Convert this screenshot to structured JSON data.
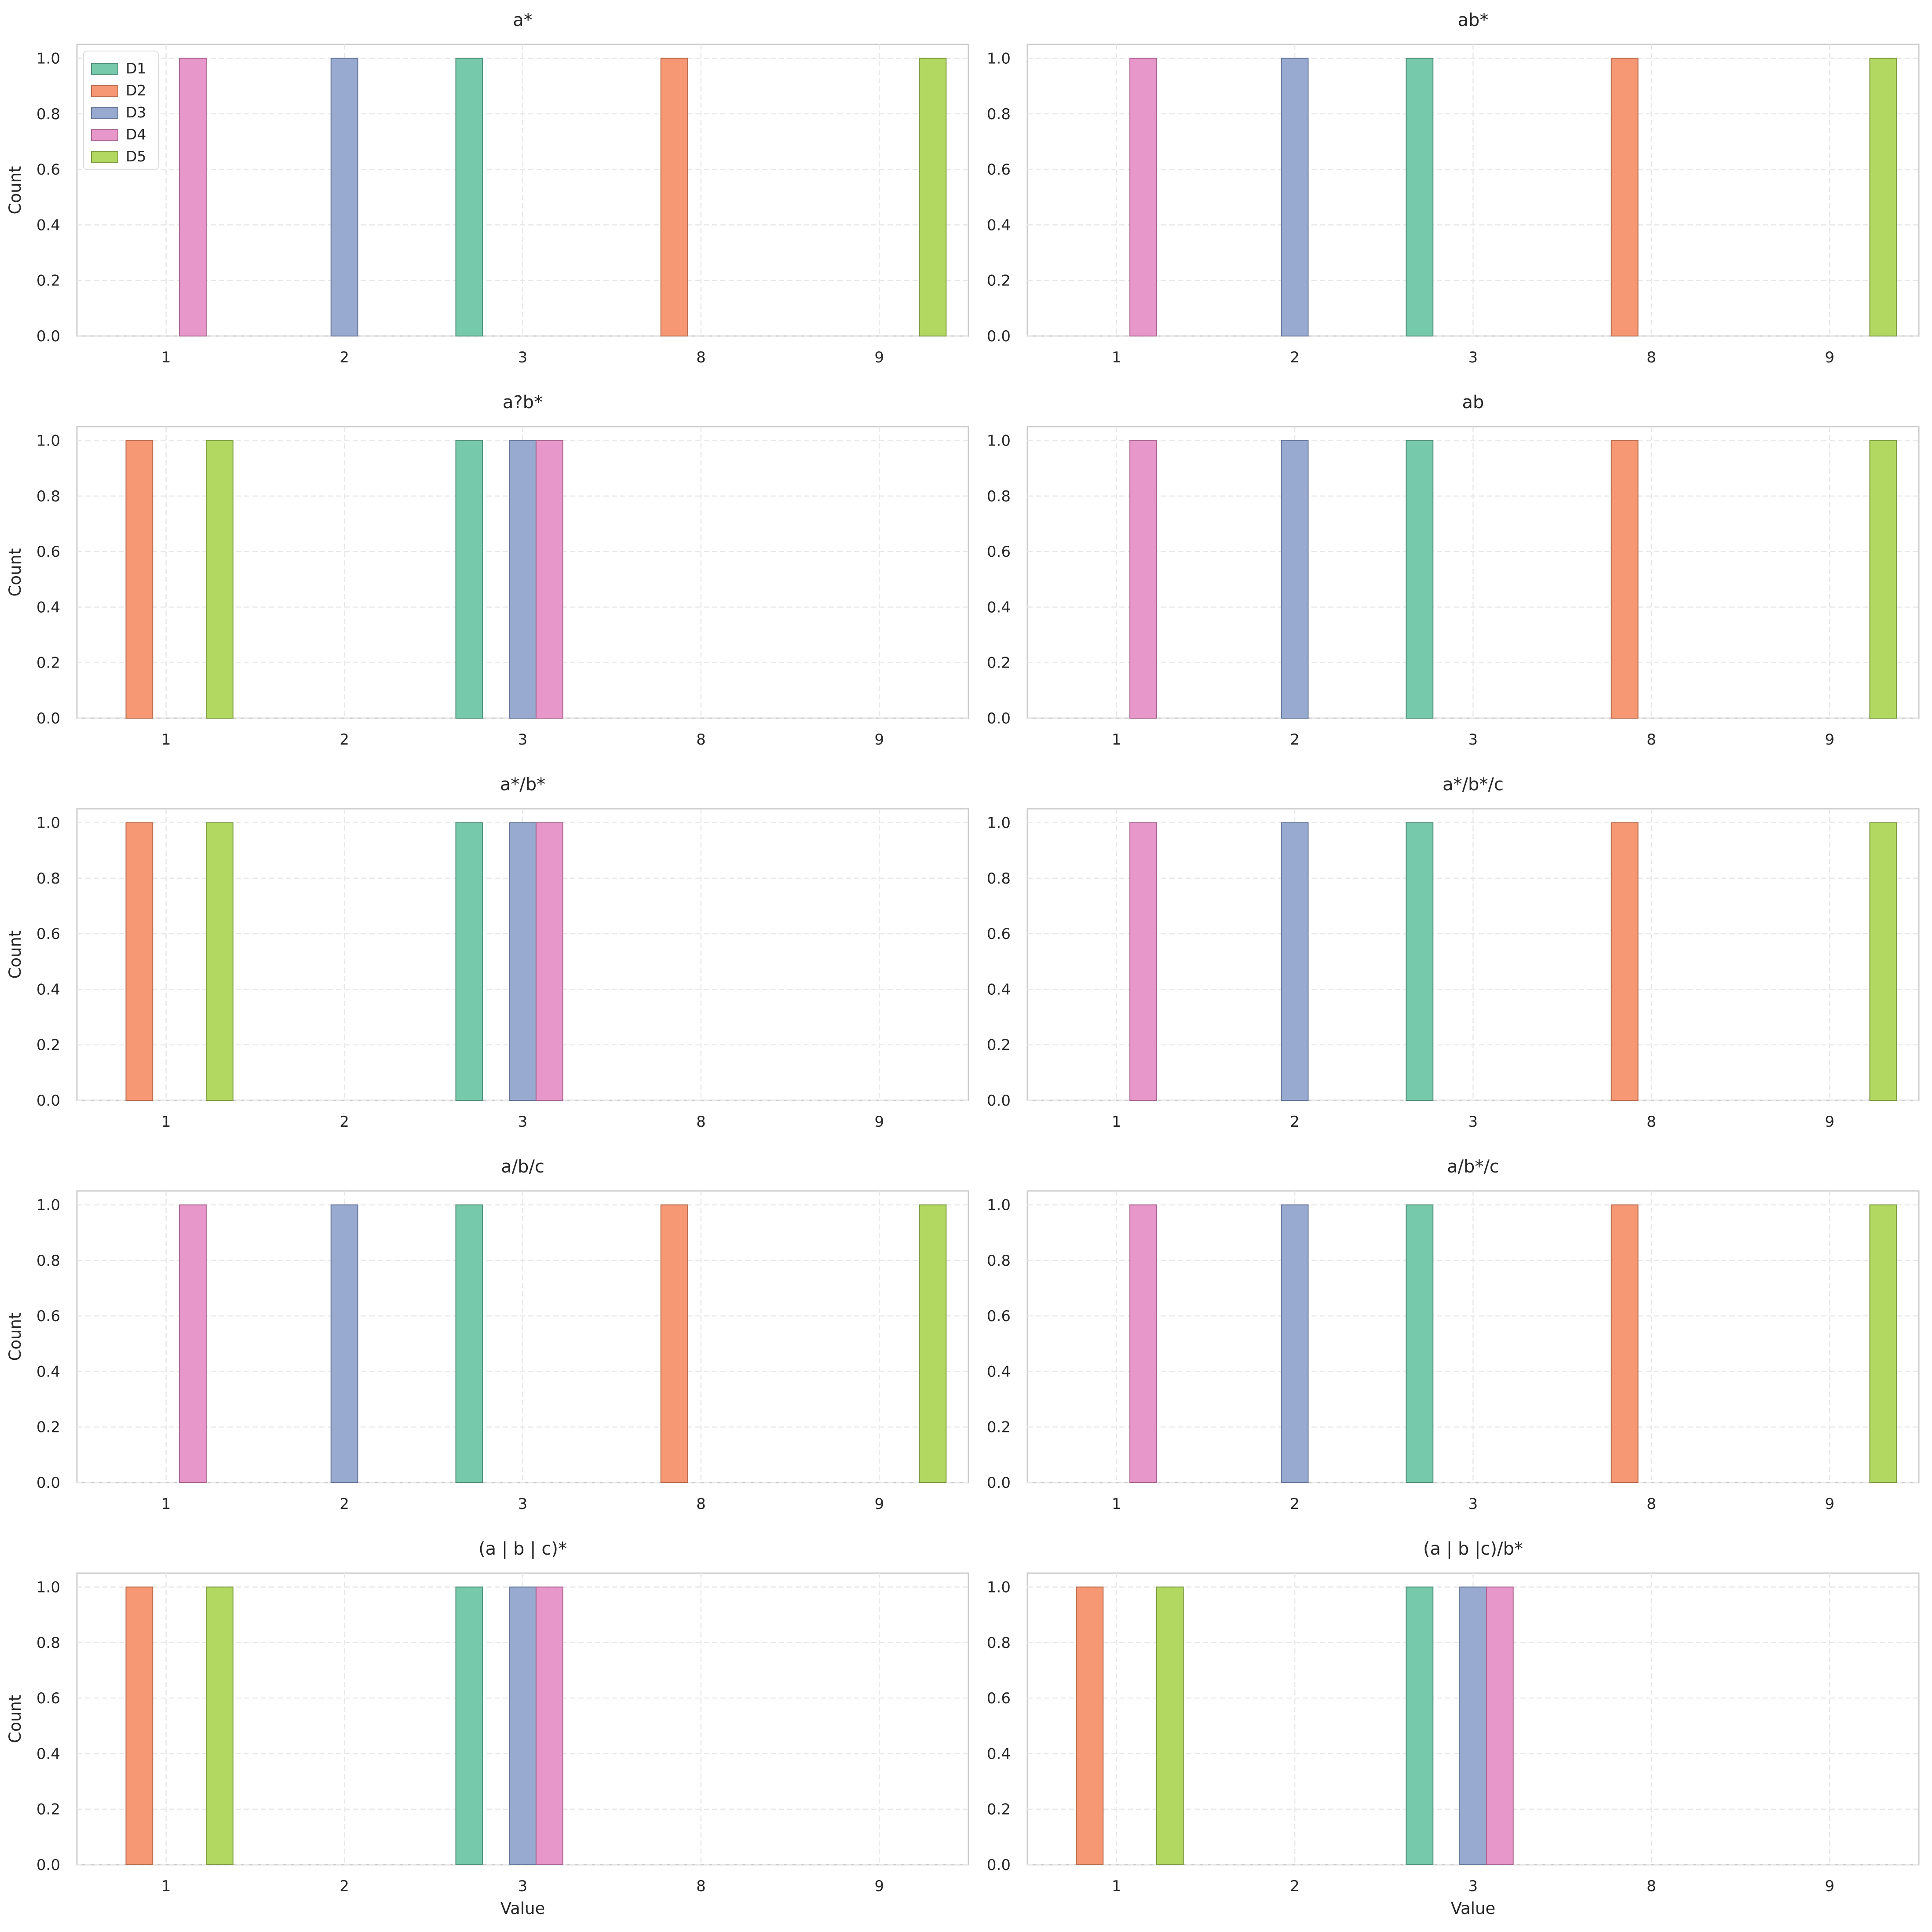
{
  "colors": {
    "D1": "#77C9AC",
    "D2": "#F69874",
    "D3": "#98AACF",
    "D4": "#E797C9",
    "D5": "#B2D862"
  },
  "edge_colors": {
    "D1": "#4F8F78",
    "D2": "#B86B4D",
    "D3": "#66759A",
    "D4": "#A9648F",
    "D5": "#7C9A3F"
  },
  "chart_data": [
    {
      "type": "bar",
      "title": "a*",
      "xlabel": "",
      "ylabel": "Count",
      "categories": [
        "1",
        "2",
        "3",
        "8",
        "9"
      ],
      "ylim": [
        0,
        1.05
      ],
      "yticks": [
        "0.0",
        "0.2",
        "0.4",
        "0.6",
        "0.8",
        "1.0"
      ],
      "grid": true,
      "legend": "top-left",
      "series": [
        {
          "name": "D1",
          "values": [
            0,
            0,
            1,
            0,
            0
          ]
        },
        {
          "name": "D2",
          "values": [
            0,
            0,
            0,
            1,
            0
          ]
        },
        {
          "name": "D3",
          "values": [
            0,
            1,
            0,
            0,
            0
          ]
        },
        {
          "name": "D4",
          "values": [
            1,
            0,
            0,
            0,
            0
          ]
        },
        {
          "name": "D5",
          "values": [
            0,
            0,
            0,
            0,
            1
          ]
        }
      ]
    },
    {
      "type": "bar",
      "title": "ab*",
      "xlabel": "",
      "ylabel": "",
      "categories": [
        "1",
        "2",
        "3",
        "8",
        "9"
      ],
      "ylim": [
        0,
        1.05
      ],
      "yticks": [
        "0.0",
        "0.2",
        "0.4",
        "0.6",
        "0.8",
        "1.0"
      ],
      "grid": true,
      "series": [
        {
          "name": "D1",
          "values": [
            0,
            0,
            1,
            0,
            0
          ]
        },
        {
          "name": "D2",
          "values": [
            0,
            0,
            0,
            1,
            0
          ]
        },
        {
          "name": "D3",
          "values": [
            0,
            1,
            0,
            0,
            0
          ]
        },
        {
          "name": "D4",
          "values": [
            1,
            0,
            0,
            0,
            0
          ]
        },
        {
          "name": "D5",
          "values": [
            0,
            0,
            0,
            0,
            1
          ]
        }
      ]
    },
    {
      "type": "bar",
      "title": "a?b*",
      "xlabel": "",
      "ylabel": "Count",
      "categories": [
        "1",
        "2",
        "3",
        "8",
        "9"
      ],
      "ylim": [
        0,
        1.05
      ],
      "yticks": [
        "0.0",
        "0.2",
        "0.4",
        "0.6",
        "0.8",
        "1.0"
      ],
      "grid": true,
      "series": [
        {
          "name": "D1",
          "values": [
            0,
            0,
            1,
            0,
            0
          ]
        },
        {
          "name": "D2",
          "values": [
            1,
            0,
            0,
            0,
            0
          ]
        },
        {
          "name": "D3",
          "values": [
            0,
            0,
            1,
            0,
            0
          ]
        },
        {
          "name": "D4",
          "values": [
            0,
            0,
            1,
            0,
            0
          ]
        },
        {
          "name": "D5",
          "values": [
            1,
            0,
            0,
            0,
            0
          ]
        }
      ]
    },
    {
      "type": "bar",
      "title": "ab",
      "xlabel": "",
      "ylabel": "",
      "categories": [
        "1",
        "2",
        "3",
        "8",
        "9"
      ],
      "ylim": [
        0,
        1.05
      ],
      "yticks": [
        "0.0",
        "0.2",
        "0.4",
        "0.6",
        "0.8",
        "1.0"
      ],
      "grid": true,
      "series": [
        {
          "name": "D1",
          "values": [
            0,
            0,
            1,
            0,
            0
          ]
        },
        {
          "name": "D2",
          "values": [
            0,
            0,
            0,
            1,
            0
          ]
        },
        {
          "name": "D3",
          "values": [
            0,
            1,
            0,
            0,
            0
          ]
        },
        {
          "name": "D4",
          "values": [
            1,
            0,
            0,
            0,
            0
          ]
        },
        {
          "name": "D5",
          "values": [
            0,
            0,
            0,
            0,
            1
          ]
        }
      ]
    },
    {
      "type": "bar",
      "title": "a*/b*",
      "xlabel": "",
      "ylabel": "Count",
      "categories": [
        "1",
        "2",
        "3",
        "8",
        "9"
      ],
      "ylim": [
        0,
        1.05
      ],
      "yticks": [
        "0.0",
        "0.2",
        "0.4",
        "0.6",
        "0.8",
        "1.0"
      ],
      "grid": true,
      "series": [
        {
          "name": "D1",
          "values": [
            0,
            0,
            1,
            0,
            0
          ]
        },
        {
          "name": "D2",
          "values": [
            1,
            0,
            0,
            0,
            0
          ]
        },
        {
          "name": "D3",
          "values": [
            0,
            0,
            1,
            0,
            0
          ]
        },
        {
          "name": "D4",
          "values": [
            0,
            0,
            1,
            0,
            0
          ]
        },
        {
          "name": "D5",
          "values": [
            1,
            0,
            0,
            0,
            0
          ]
        }
      ]
    },
    {
      "type": "bar",
      "title": "a*/b*/c",
      "xlabel": "",
      "ylabel": "",
      "categories": [
        "1",
        "2",
        "3",
        "8",
        "9"
      ],
      "ylim": [
        0,
        1.05
      ],
      "yticks": [
        "0.0",
        "0.2",
        "0.4",
        "0.6",
        "0.8",
        "1.0"
      ],
      "grid": true,
      "series": [
        {
          "name": "D1",
          "values": [
            0,
            0,
            1,
            0,
            0
          ]
        },
        {
          "name": "D2",
          "values": [
            0,
            0,
            0,
            1,
            0
          ]
        },
        {
          "name": "D3",
          "values": [
            0,
            1,
            0,
            0,
            0
          ]
        },
        {
          "name": "D4",
          "values": [
            1,
            0,
            0,
            0,
            0
          ]
        },
        {
          "name": "D5",
          "values": [
            0,
            0,
            0,
            0,
            1
          ]
        }
      ]
    },
    {
      "type": "bar",
      "title": "a/b/c",
      "xlabel": "",
      "ylabel": "Count",
      "categories": [
        "1",
        "2",
        "3",
        "8",
        "9"
      ],
      "ylim": [
        0,
        1.05
      ],
      "yticks": [
        "0.0",
        "0.2",
        "0.4",
        "0.6",
        "0.8",
        "1.0"
      ],
      "grid": true,
      "series": [
        {
          "name": "D1",
          "values": [
            0,
            0,
            1,
            0,
            0
          ]
        },
        {
          "name": "D2",
          "values": [
            0,
            0,
            0,
            1,
            0
          ]
        },
        {
          "name": "D3",
          "values": [
            0,
            1,
            0,
            0,
            0
          ]
        },
        {
          "name": "D4",
          "values": [
            1,
            0,
            0,
            0,
            0
          ]
        },
        {
          "name": "D5",
          "values": [
            0,
            0,
            0,
            0,
            1
          ]
        }
      ]
    },
    {
      "type": "bar",
      "title": "a/b*/c",
      "xlabel": "",
      "ylabel": "",
      "categories": [
        "1",
        "2",
        "3",
        "8",
        "9"
      ],
      "ylim": [
        0,
        1.05
      ],
      "yticks": [
        "0.0",
        "0.2",
        "0.4",
        "0.6",
        "0.8",
        "1.0"
      ],
      "grid": true,
      "series": [
        {
          "name": "D1",
          "values": [
            0,
            0,
            1,
            0,
            0
          ]
        },
        {
          "name": "D2",
          "values": [
            0,
            0,
            0,
            1,
            0
          ]
        },
        {
          "name": "D3",
          "values": [
            0,
            1,
            0,
            0,
            0
          ]
        },
        {
          "name": "D4",
          "values": [
            1,
            0,
            0,
            0,
            0
          ]
        },
        {
          "name": "D5",
          "values": [
            0,
            0,
            0,
            0,
            1
          ]
        }
      ]
    },
    {
      "type": "bar",
      "title": "(a | b | c)*",
      "xlabel": "Value",
      "ylabel": "Count",
      "categories": [
        "1",
        "2",
        "3",
        "8",
        "9"
      ],
      "ylim": [
        0,
        1.05
      ],
      "yticks": [
        "0.0",
        "0.2",
        "0.4",
        "0.6",
        "0.8",
        "1.0"
      ],
      "grid": true,
      "series": [
        {
          "name": "D1",
          "values": [
            0,
            0,
            1,
            0,
            0
          ]
        },
        {
          "name": "D2",
          "values": [
            1,
            0,
            0,
            0,
            0
          ]
        },
        {
          "name": "D3",
          "values": [
            0,
            0,
            1,
            0,
            0
          ]
        },
        {
          "name": "D4",
          "values": [
            0,
            0,
            1,
            0,
            0
          ]
        },
        {
          "name": "D5",
          "values": [
            1,
            0,
            0,
            0,
            0
          ]
        }
      ]
    },
    {
      "type": "bar",
      "title": "(a | b |c)/b*",
      "xlabel": "Value",
      "ylabel": "",
      "categories": [
        "1",
        "2",
        "3",
        "8",
        "9"
      ],
      "ylim": [
        0,
        1.05
      ],
      "yticks": [
        "0.0",
        "0.2",
        "0.4",
        "0.6",
        "0.8",
        "1.0"
      ],
      "grid": true,
      "series": [
        {
          "name": "D1",
          "values": [
            0,
            0,
            1,
            0,
            0
          ]
        },
        {
          "name": "D2",
          "values": [
            1,
            0,
            0,
            0,
            0
          ]
        },
        {
          "name": "D3",
          "values": [
            0,
            0,
            1,
            0,
            0
          ]
        },
        {
          "name": "D4",
          "values": [
            0,
            0,
            1,
            0,
            0
          ]
        },
        {
          "name": "D5",
          "values": [
            1,
            0,
            0,
            0,
            0
          ]
        }
      ]
    }
  ]
}
